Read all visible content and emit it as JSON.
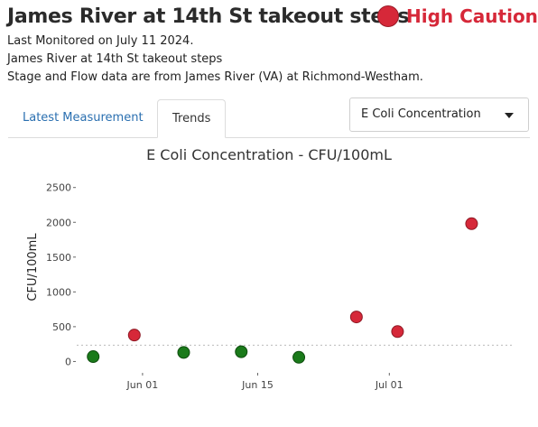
{
  "header": {
    "title": "James River at 14th St takeout steps",
    "status": {
      "label": "High Caution",
      "color": "#d62839"
    },
    "last_monitored": "Last Monitored on July 11 2024.",
    "site_name": "James River at 14th St takeout steps",
    "source_note": "Stage and Flow data are from James River (VA) at Richmond-Westham."
  },
  "tabs": [
    {
      "label": "Latest Measurement",
      "active": false
    },
    {
      "label": "Trends",
      "active": true
    }
  ],
  "parameter_select": {
    "value": "E Coli Concentration"
  },
  "colors": {
    "high": "#d62839",
    "ok": "#1a7a1a",
    "accent": "#2a6fb0"
  },
  "chart_data": {
    "type": "scatter",
    "title": "E Coli Concentration - CFU/100mL",
    "ylabel": "CFU/100mL",
    "xlabel": "",
    "ylim": [
      -150,
      2600
    ],
    "yticks": [
      0,
      500,
      1000,
      1500,
      2000,
      2500
    ],
    "xlim": [
      "2024-05-24",
      "2024-07-16"
    ],
    "xticks": [
      {
        "date": "2024-06-01",
        "label": "Jun 01"
      },
      {
        "date": "2024-06-15",
        "label": "Jun 15"
      },
      {
        "date": "2024-07-01",
        "label": "Jul 01"
      }
    ],
    "threshold": 235,
    "points": [
      {
        "date": "2024-05-26",
        "value": 70,
        "status": "ok"
      },
      {
        "date": "2024-05-31",
        "value": 380,
        "status": "high"
      },
      {
        "date": "2024-06-06",
        "value": 130,
        "status": "ok"
      },
      {
        "date": "2024-06-13",
        "value": 140,
        "status": "ok"
      },
      {
        "date": "2024-06-20",
        "value": 60,
        "status": "ok"
      },
      {
        "date": "2024-06-27",
        "value": 640,
        "status": "high"
      },
      {
        "date": "2024-07-02",
        "value": 430,
        "status": "high"
      },
      {
        "date": "2024-07-11",
        "value": 1980,
        "status": "high"
      }
    ]
  }
}
